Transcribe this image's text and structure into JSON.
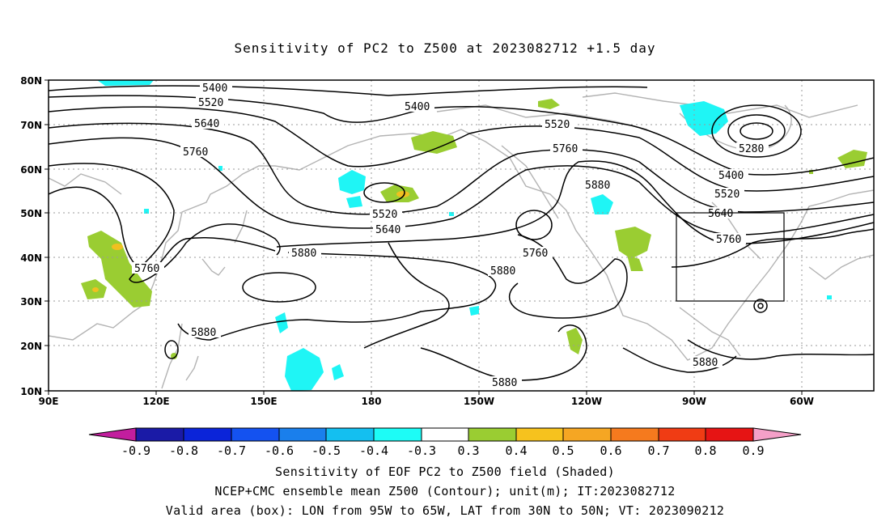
{
  "title": "Sensitivity of PC2 to Z500 at 2023082712 +1.5 day",
  "lat_labels": [
    "80N",
    "70N",
    "60N",
    "50N",
    "40N",
    "30N",
    "20N",
    "10N"
  ],
  "lon_labels": [
    "90E",
    "120E",
    "150E",
    "180",
    "150W",
    "120W",
    "90W",
    "60W"
  ],
  "contour_labels": [
    {
      "id": "c1",
      "text": "5400"
    },
    {
      "id": "c2",
      "text": "5520"
    },
    {
      "id": "c3",
      "text": "5640"
    },
    {
      "id": "c4",
      "text": "5760"
    },
    {
      "id": "c5",
      "text": "5400"
    },
    {
      "id": "c6",
      "text": "5520"
    },
    {
      "id": "c7",
      "text": "5760"
    },
    {
      "id": "c8",
      "text": "5280"
    },
    {
      "id": "c9",
      "text": "5400"
    },
    {
      "id": "c10",
      "text": "5520"
    },
    {
      "id": "c11",
      "text": "5640"
    },
    {
      "id": "c12",
      "text": "5760"
    },
    {
      "id": "c13",
      "text": "5880"
    },
    {
      "id": "c14",
      "text": "5520"
    },
    {
      "id": "c15",
      "text": "5640"
    },
    {
      "id": "c16",
      "text": "5880"
    },
    {
      "id": "c17",
      "text": "5760"
    },
    {
      "id": "c18",
      "text": "5880"
    },
    {
      "id": "c19",
      "text": "5760"
    },
    {
      "id": "c20",
      "text": "5880"
    },
    {
      "id": "c21",
      "text": "5880"
    },
    {
      "id": "c22",
      "text": "5880"
    }
  ],
  "colorbar": {
    "labels": [
      "-0.9",
      "-0.8",
      "-0.7",
      "-0.6",
      "-0.5",
      "-0.4",
      "-0.3",
      "0.3",
      "0.4",
      "0.5",
      "0.6",
      "0.7",
      "0.8",
      "0.9"
    ],
    "colors": [
      "#c21e9e",
      "#1a1aa6",
      "#0b24d9",
      "#1452f0",
      "#1a7fec",
      "#14bff0",
      "#1dfcf6",
      "#ffffff",
      "#9acd32",
      "#f6c21e",
      "#f5a623",
      "#f57a1e",
      "#f03c14",
      "#e61414",
      "#f5a0c8"
    ]
  },
  "shading_colors": {
    "cyan": "#1ff5f5",
    "green": "#9acd32",
    "yellow": "#f0c020",
    "orange": "#f0a040"
  },
  "valid_box": {
    "lon_from": "95W",
    "lon_to": "65W",
    "lat_from": "30N",
    "lat_to": "50N"
  },
  "captions": {
    "line1": "Sensitivity of EOF PC2 to Z500 field (Shaded)",
    "line2": "NCEP+CMC ensemble mean Z500 (Contour); unit(m); IT:2023082712",
    "line3": "Valid area (box): LON from 95W to 65W, LAT from 30N to 50N; VT: 2023090212"
  }
}
